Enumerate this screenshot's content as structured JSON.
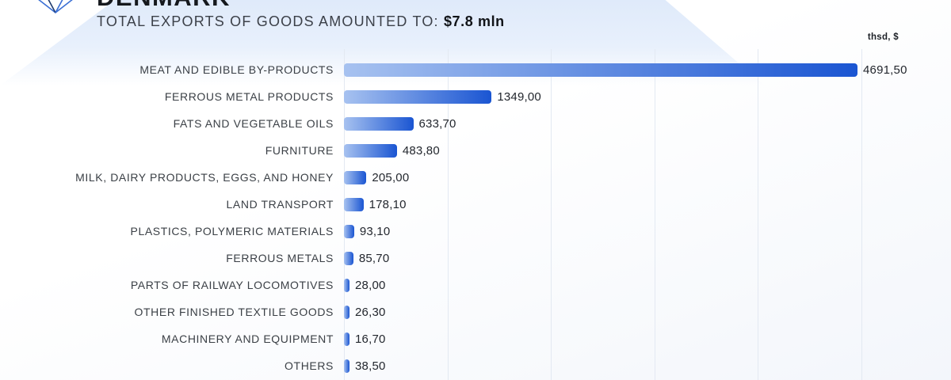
{
  "header": {
    "country": "DENMARK",
    "subtitle_prefix": "TOTAL EXPORTS OF GOODS AMOUNTED TO: ",
    "total_value": "$7.8 mln",
    "unit_label": "thsd, $"
  },
  "colors": {
    "bar_gradient_start": "#a7c2f0",
    "bar_gradient_end": "#1a55d2",
    "band_blue": "#dfeafa",
    "text_dark": "#15181d",
    "text_label": "#3b4046",
    "grid_line": "#e3e9f2",
    "logo_blue": "#3b6fd4"
  },
  "chart_data": {
    "type": "bar",
    "orientation": "horizontal",
    "title": "TOTAL EXPORTS OF GOODS AMOUNTED TO: $7.8 mln",
    "unit": "thsd, $",
    "categories": [
      "MEAT AND EDIBLE BY-PRODUCTS",
      "FERROUS METAL PRODUCTS",
      "FATS AND VEGETABLE OILS",
      "FURNITURE",
      "MILK, DAIRY PRODUCTS, EGGS, AND HONEY",
      "LAND TRANSPORT",
      "PLASTICS, POLYMERIC MATERIALS",
      "FERROUS METALS",
      "PARTS OF RAILWAY LOCOMOTIVES",
      "OTHER FINISHED TEXTILE GOODS",
      "MACHINERY AND EQUIPMENT",
      "OTHERS"
    ],
    "values": [
      4691.5,
      1349.0,
      633.7,
      483.8,
      205.0,
      178.1,
      93.1,
      85.7,
      28.0,
      26.3,
      16.7,
      38.5
    ],
    "value_labels": [
      "4691,50",
      "1349,00",
      "633,70",
      "483,80",
      "205,00",
      "178,10",
      "93,10",
      "85,70",
      "28,00",
      "26,30",
      "16,70",
      "38,50"
    ],
    "xlim": [
      0,
      4691.5
    ],
    "grid": true,
    "legend": false
  }
}
